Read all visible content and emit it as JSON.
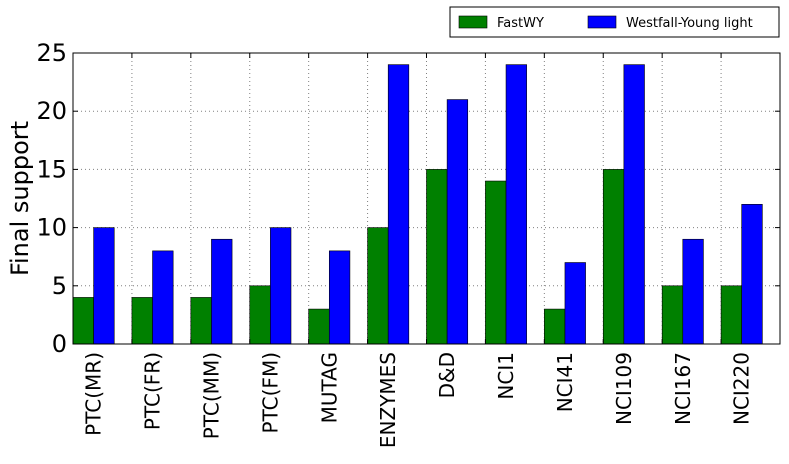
{
  "chart_data": {
    "type": "bar",
    "title": "",
    "xlabel": "",
    "ylabel": "Final support",
    "ylim": [
      0,
      25
    ],
    "yticks": [
      0,
      5,
      10,
      15,
      20,
      25
    ],
    "grid": true,
    "legend_position": "top-right, outside plot",
    "categories": [
      "PTC(MR)",
      "PTC(FR)",
      "PTC(MM)",
      "PTC(FM)",
      "MUTAG",
      "ENZYMES",
      "D&D",
      "NCI1",
      "NCI41",
      "NCI109",
      "NCI167",
      "NCI220"
    ],
    "series": [
      {
        "name": "FastWY",
        "color": "#008000",
        "values": [
          4,
          4,
          4,
          5,
          3,
          10,
          15,
          14,
          3,
          15,
          5,
          5
        ]
      },
      {
        "name": "Westfall-Young light",
        "color": "#0000ff",
        "values": [
          10,
          8,
          9,
          10,
          8,
          24,
          21,
          24,
          7,
          24,
          9,
          12
        ]
      }
    ]
  }
}
